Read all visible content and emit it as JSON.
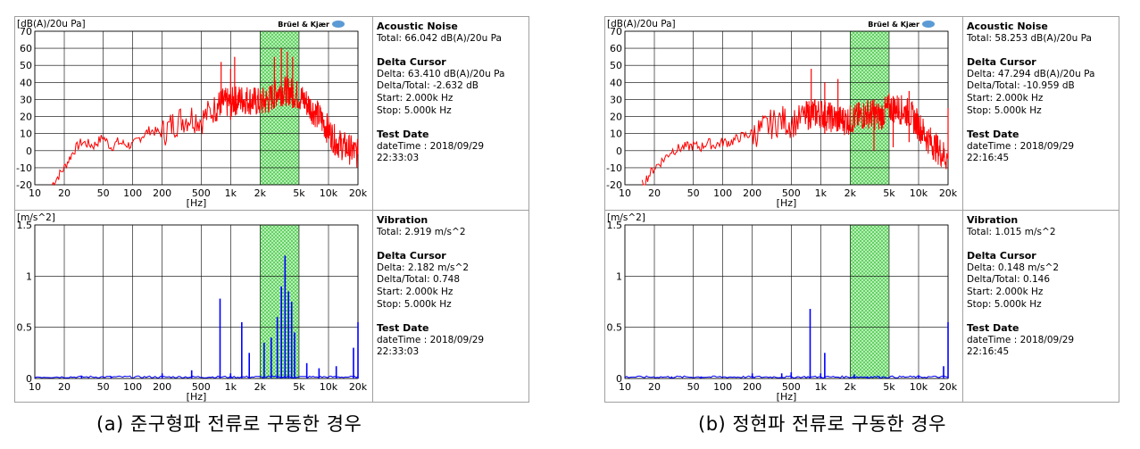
{
  "panels": [
    {
      "id": "a",
      "caption": "(a) 준구형파 전류로 구동한 경우",
      "brand": "Brüel & Kjær",
      "acoustic": {
        "heading": "Acoustic Noise",
        "total": "Total: 66.042 dB(A)/20u Pa",
        "delta_heading": "Delta Cursor",
        "delta": "Delta: 63.410 dB(A)/20u Pa",
        "delta_total": "Delta/Total: -2.632 dB",
        "start": "Start: 2.000k Hz",
        "stop": "Stop: 5.000k Hz",
        "date_heading": "Test Date",
        "date": "dateTime : 2018/09/29 22:33:03"
      },
      "vibration": {
        "heading": "Vibration",
        "total": "Total: 2.919 m/s^2",
        "delta_heading": "Delta Cursor",
        "delta": "Delta: 2.182 m/s^2",
        "delta_total": "Delta/Total: 0.748",
        "start": "Start: 2.000k Hz",
        "stop": "Stop: 5.000k Hz",
        "date_heading": "Test Date",
        "date": "dateTime : 2018/09/29 22:33:03"
      }
    },
    {
      "id": "b",
      "caption": "(b) 정현파 전류로 구동한 경우",
      "brand": "Brüel & Kjær",
      "acoustic": {
        "heading": "Acoustic Noise",
        "total": "Total: 58.253 dB(A)/20u Pa",
        "delta_heading": "Delta Cursor",
        "delta": "Delta: 47.294 dB(A)/20u Pa",
        "delta_total": "Delta/Total: -10.959 dB",
        "start": "Start: 2.000k Hz",
        "stop": "Stop: 5.000k Hz",
        "date_heading": "Test Date",
        "date": "dateTime : 2018/09/29 22:16:45"
      },
      "vibration": {
        "heading": "Vibration",
        "total": "Total: 1.015 m/s^2",
        "delta_heading": "Delta Cursor",
        "delta": "Delta: 0.148 m/s^2",
        "delta_total": "Delta/Total: 0.146",
        "start": "Start: 2.000k Hz",
        "stop": "Stop: 5.000k Hz",
        "date_heading": "Test Date",
        "date": "dateTime : 2018/09/29 22:16:45"
      }
    }
  ],
  "chart_data": [
    {
      "type": "line",
      "panel": "a",
      "ylabel": "[dB(A)/20u Pa]",
      "xlabel": "[Hz]",
      "xscale": "log",
      "xlim": [
        10,
        20000
      ],
      "ylim": [
        -20,
        70
      ],
      "yticks": [
        -20,
        -10,
        0,
        10,
        20,
        30,
        40,
        50,
        60,
        70
      ],
      "xticks": [
        10,
        20,
        50,
        100,
        200,
        500,
        1000,
        2000,
        5000,
        10000,
        20000
      ],
      "xtick_labels": [
        "10",
        "20",
        "50",
        "100",
        "200",
        "500",
        "1k",
        "2k",
        "5k",
        "10k",
        "20k"
      ],
      "grid": true,
      "series_color": "#ff0000",
      "highlight_band": [
        2000,
        5000
      ],
      "series": [
        {
          "x": [
            15,
            20,
            25,
            30,
            40,
            50,
            60,
            70,
            80,
            100,
            120,
            150,
            200,
            250,
            300,
            400,
            500,
            600,
            700,
            800,
            1000,
            1200,
            1500,
            2000,
            2500,
            3000,
            4000,
            5000,
            6000,
            8000,
            10000,
            12000,
            15000,
            20000
          ],
          "y": [
            -20,
            -10,
            0,
            5,
            3,
            8,
            2,
            5,
            4,
            3,
            8,
            12,
            10,
            15,
            18,
            20,
            18,
            22,
            25,
            28,
            28,
            30,
            30,
            28,
            30,
            35,
            35,
            32,
            28,
            20,
            12,
            5,
            2,
            -2
          ],
          "peaks": [
            {
              "x": 800,
              "y": 52
            },
            {
              "x": 1000,
              "y": 48
            },
            {
              "x": 1100,
              "y": 55
            },
            {
              "x": 2800,
              "y": 55
            },
            {
              "x": 3300,
              "y": 60
            },
            {
              "x": 3800,
              "y": 58
            },
            {
              "x": 4300,
              "y": 55
            }
          ]
        }
      ]
    },
    {
      "type": "bar",
      "panel": "a",
      "ylabel": "[m/s^2]",
      "xlabel": "[Hz]",
      "xscale": "log",
      "xlim": [
        10,
        20000
      ],
      "ylim": [
        0,
        1.5
      ],
      "yticks": [
        0,
        0.5,
        1,
        1.5
      ],
      "ytick_labels": [
        "0",
        "0.5",
        "1",
        "1.5"
      ],
      "xticks": [
        10,
        20,
        50,
        100,
        200,
        500,
        1000,
        2000,
        5000,
        10000,
        20000
      ],
      "xtick_labels": [
        "10",
        "20",
        "50",
        "100",
        "200",
        "500",
        "1k",
        "2k",
        "5k",
        "10k",
        "20k"
      ],
      "grid": true,
      "series_color": "#0000ff",
      "highlight_band": [
        2000,
        5000
      ],
      "series": [
        {
          "x": [
            30,
            60,
            200,
            400,
            780,
            1000,
            1300,
            1550,
            2200,
            2600,
            3000,
            3300,
            3600,
            3900,
            4200,
            4500,
            6000,
            8000,
            12000,
            18000,
            20000
          ],
          "y": [
            0.02,
            0.02,
            0.05,
            0.08,
            0.78,
            0.05,
            0.55,
            0.25,
            0.35,
            0.4,
            0.6,
            0.9,
            1.2,
            0.85,
            0.75,
            0.45,
            0.15,
            0.1,
            0.12,
            0.3,
            0.55
          ]
        }
      ]
    },
    {
      "type": "line",
      "panel": "b",
      "ylabel": "[dB(A)/20u Pa]",
      "xlabel": "[Hz]",
      "xscale": "log",
      "xlim": [
        10,
        20000
      ],
      "ylim": [
        -20,
        70
      ],
      "yticks": [
        -20,
        -10,
        0,
        10,
        20,
        30,
        40,
        50,
        60,
        70
      ],
      "xticks": [
        10,
        20,
        50,
        100,
        200,
        500,
        1000,
        2000,
        5000,
        10000,
        20000
      ],
      "xtick_labels": [
        "10",
        "20",
        "50",
        "100",
        "200",
        "500",
        "1k",
        "2k",
        "5k",
        "10k",
        "20k"
      ],
      "grid": true,
      "series_color": "#ff0000",
      "highlight_band": [
        2000,
        5000
      ],
      "series": [
        {
          "x": [
            15,
            20,
            25,
            30,
            40,
            50,
            60,
            70,
            80,
            100,
            120,
            150,
            200,
            250,
            300,
            400,
            500,
            600,
            700,
            800,
            1000,
            1200,
            1500,
            2000,
            2500,
            3000,
            4000,
            5000,
            6000,
            8000,
            10000,
            12000,
            15000,
            20000
          ],
          "y": [
            -20,
            -10,
            -5,
            0,
            2,
            3,
            2,
            5,
            3,
            5,
            5,
            8,
            10,
            12,
            15,
            18,
            16,
            18,
            20,
            22,
            22,
            20,
            18,
            18,
            20,
            22,
            20,
            25,
            25,
            22,
            15,
            8,
            2,
            -5
          ],
          "peaks": [
            {
              "x": 800,
              "y": 48
            },
            {
              "x": 1100,
              "y": 40
            },
            {
              "x": 1500,
              "y": 42
            },
            {
              "x": 3500,
              "y": 30
            },
            {
              "x": 5500,
              "y": 32
            },
            {
              "x": 8000,
              "y": 35
            },
            {
              "x": 20000,
              "y": 25
            }
          ]
        }
      ]
    },
    {
      "type": "bar",
      "panel": "b",
      "ylabel": "[m/s^2]",
      "xlabel": "[Hz]",
      "xscale": "log",
      "xlim": [
        10,
        20000
      ],
      "ylim": [
        0,
        1.5
      ],
      "yticks": [
        0,
        0.5,
        1,
        1.5
      ],
      "ytick_labels": [
        "0",
        "0.5",
        "1",
        "1.5"
      ],
      "xticks": [
        10,
        20,
        50,
        100,
        200,
        500,
        1000,
        2000,
        5000,
        10000,
        20000
      ],
      "xtick_labels": [
        "10",
        "20",
        "50",
        "100",
        "200",
        "500",
        "1k",
        "2k",
        "5k",
        "10k",
        "20k"
      ],
      "grid": true,
      "series_color": "#0000ff",
      "highlight_band": [
        2000,
        5000
      ],
      "series": [
        {
          "x": [
            30,
            60,
            200,
            400,
            500,
            780,
            1000,
            1100,
            2200,
            3000,
            4000,
            10000,
            18000,
            20000
          ],
          "y": [
            0.02,
            0.02,
            0.05,
            0.05,
            0.06,
            0.68,
            0.05,
            0.25,
            0.04,
            0.02,
            0.02,
            0.03,
            0.12,
            0.55
          ]
        }
      ]
    }
  ]
}
